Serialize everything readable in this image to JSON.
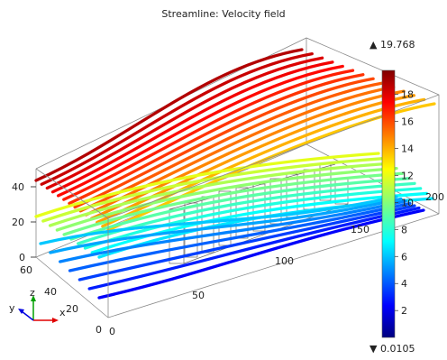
{
  "title": "Streamline: Velocity field",
  "colors": {
    "frame": "#7a7a7a",
    "background": "#ffffff"
  },
  "axes": {
    "x_ticks": [
      "0",
      "50",
      "100",
      "150",
      "200"
    ],
    "y_ticks": [
      "0",
      "20",
      "40",
      "60"
    ],
    "z_ticks": [
      "0",
      "20",
      "40"
    ]
  },
  "triad": {
    "x": "x",
    "y": "y",
    "z": "z"
  },
  "colorbar": {
    "max_label": "▲ 19.768",
    "min_label": "▼ 0.0105",
    "min": 0.0105,
    "max": 19.768,
    "ticks": [
      "2",
      "4",
      "6",
      "8",
      "10",
      "12",
      "14",
      "16",
      "18"
    ]
  },
  "icons": {
    "max_marker": "triangle-up-icon",
    "min_marker": "triangle-down-icon",
    "triad": "axis-triad-icon"
  }
}
